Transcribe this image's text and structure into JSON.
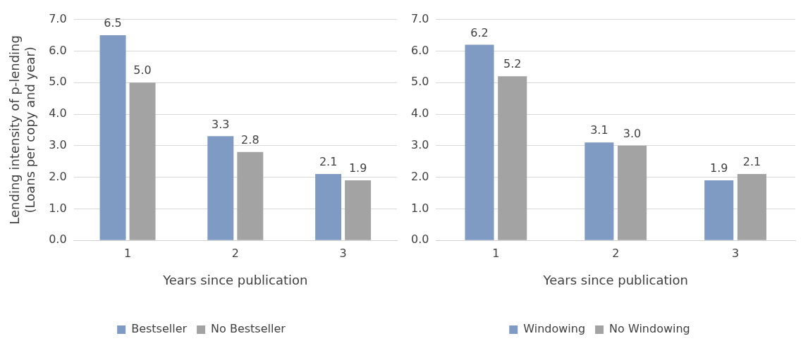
{
  "chart_data": [
    {
      "type": "bar",
      "categories": [
        "1",
        "2",
        "3"
      ],
      "xlabel": "Years since publication",
      "ylabel": "Lending intensity of p-lending (Loans per copy and year)",
      "ylim": [
        0,
        7
      ],
      "yticks": [
        {
          "value": 0,
          "label": "0.0"
        },
        {
          "value": 1,
          "label": "1.0"
        },
        {
          "value": 2,
          "label": "2.0"
        },
        {
          "value": 3,
          "label": "3.0"
        },
        {
          "value": 4,
          "label": "4.0"
        },
        {
          "value": 5,
          "label": "5.0"
        },
        {
          "value": 6,
          "label": "6.0"
        },
        {
          "value": 7,
          "label": "7.0"
        }
      ],
      "grid": "y",
      "legend": "bottom",
      "series": [
        {
          "name": "Bestseller",
          "color": "#7f9bc3",
          "values": [
            6.5,
            3.3,
            2.1
          ],
          "value_labels": [
            "6.5",
            "3.3",
            "2.1"
          ]
        },
        {
          "name": "No Bestseller",
          "color": "#a3a3a3",
          "values": [
            5.0,
            2.8,
            1.9
          ],
          "value_labels": [
            "5.0",
            "2.8",
            "1.9"
          ]
        }
      ]
    },
    {
      "type": "bar",
      "categories": [
        "1",
        "2",
        "3"
      ],
      "xlabel": "Years since publication",
      "ylim": [
        0,
        7
      ],
      "yticks": [
        {
          "value": 0,
          "label": "0.0"
        },
        {
          "value": 1,
          "label": "1.0"
        },
        {
          "value": 2,
          "label": "2.0"
        },
        {
          "value": 3,
          "label": "3.0"
        },
        {
          "value": 4,
          "label": "4.0"
        },
        {
          "value": 5,
          "label": "5.0"
        },
        {
          "value": 6,
          "label": "6.0"
        },
        {
          "value": 7,
          "label": "7.0"
        }
      ],
      "grid": "y",
      "legend": "bottom",
      "series": [
        {
          "name": "Windowing",
          "color": "#7f9bc3",
          "values": [
            6.2,
            3.1,
            1.9
          ],
          "value_labels": [
            "6.2",
            "3.1",
            "1.9"
          ]
        },
        {
          "name": "No Windowing",
          "color": "#a3a3a3",
          "values": [
            5.2,
            3.0,
            2.1
          ],
          "value_labels": [
            "5.2",
            "3.0",
            "2.1"
          ]
        }
      ]
    }
  ]
}
